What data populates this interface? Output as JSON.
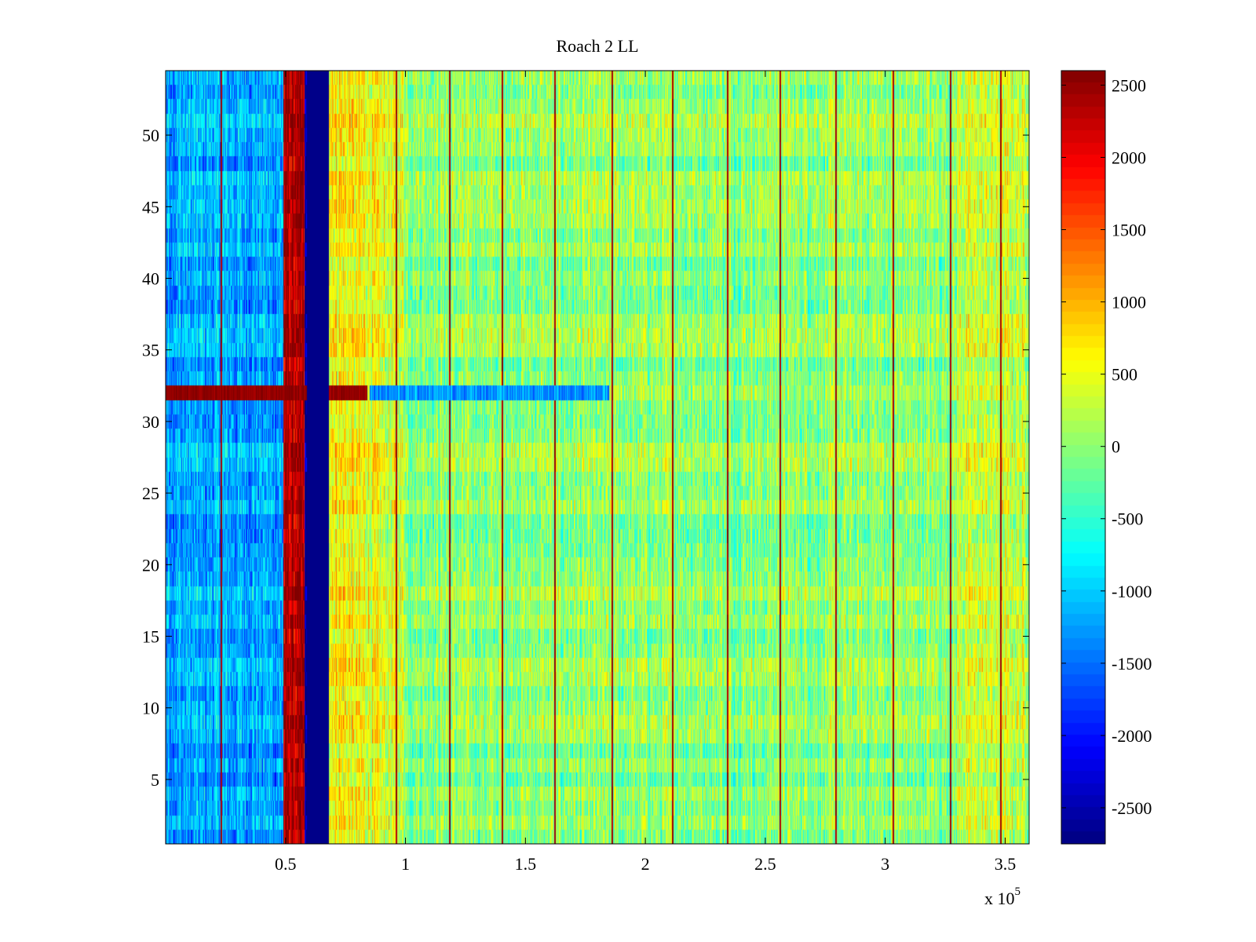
{
  "chart_data": {
    "type": "heatmap",
    "title": "Roach 2 LL",
    "xlabel": "",
    "ylabel": "",
    "x_multiplier_label": "x 10",
    "x_multiplier_exponent": "5",
    "xlim": [
      0,
      3.6
    ],
    "ylim": [
      0.5,
      54.5
    ],
    "x_ticks": [
      0.5,
      1,
      1.5,
      2,
      2.5,
      3,
      3.5
    ],
    "x_tick_labels": [
      "0.5",
      "1",
      "1.5",
      "2",
      "2.5",
      "3",
      "3.5"
    ],
    "y_ticks": [
      5,
      10,
      15,
      20,
      25,
      30,
      35,
      40,
      45,
      50
    ],
    "y_tick_labels": [
      "5",
      "10",
      "15",
      "20",
      "25",
      "30",
      "35",
      "40",
      "45",
      "50"
    ],
    "rows": 54,
    "colormap": "jet",
    "clim": [
      -2750,
      2600
    ],
    "colorbar_ticks": [
      2500,
      2000,
      1500,
      1000,
      500,
      0,
      -500,
      -1000,
      -1500,
      -2000,
      -2500
    ],
    "colorbar_tick_labels": [
      "2500",
      "2000",
      "1500",
      "1000",
      "500",
      "0",
      "-500",
      "-1000",
      "-1500",
      "-2000",
      "-2500"
    ],
    "features": {
      "low_region_x": [
        0.0,
        0.49
      ],
      "low_region_level": -1200,
      "high_band_x": [
        0.49,
        0.58
      ],
      "high_band_level": 2300,
      "saturated_low_band_x": [
        0.59,
        0.68
      ],
      "saturated_low_level": -2700,
      "warm_region_x": [
        0.69,
        1.0
      ],
      "warm_region_level": 700,
      "background_level": 0,
      "right_warm_region_x": [
        3.3,
        3.6
      ],
      "right_warm_level": 300,
      "hot_row": 32,
      "hot_row_x": [
        0.0,
        0.84
      ],
      "hot_row_level": 2500,
      "cold_row_x": [
        0.85,
        1.85
      ],
      "cold_row_level": -1300,
      "vertical_line_x": [
        0.23,
        0.5,
        0.96,
        1.18,
        1.4,
        1.62,
        1.86,
        2.11,
        2.34,
        2.56,
        2.79,
        3.03,
        3.27,
        3.48
      ]
    }
  }
}
